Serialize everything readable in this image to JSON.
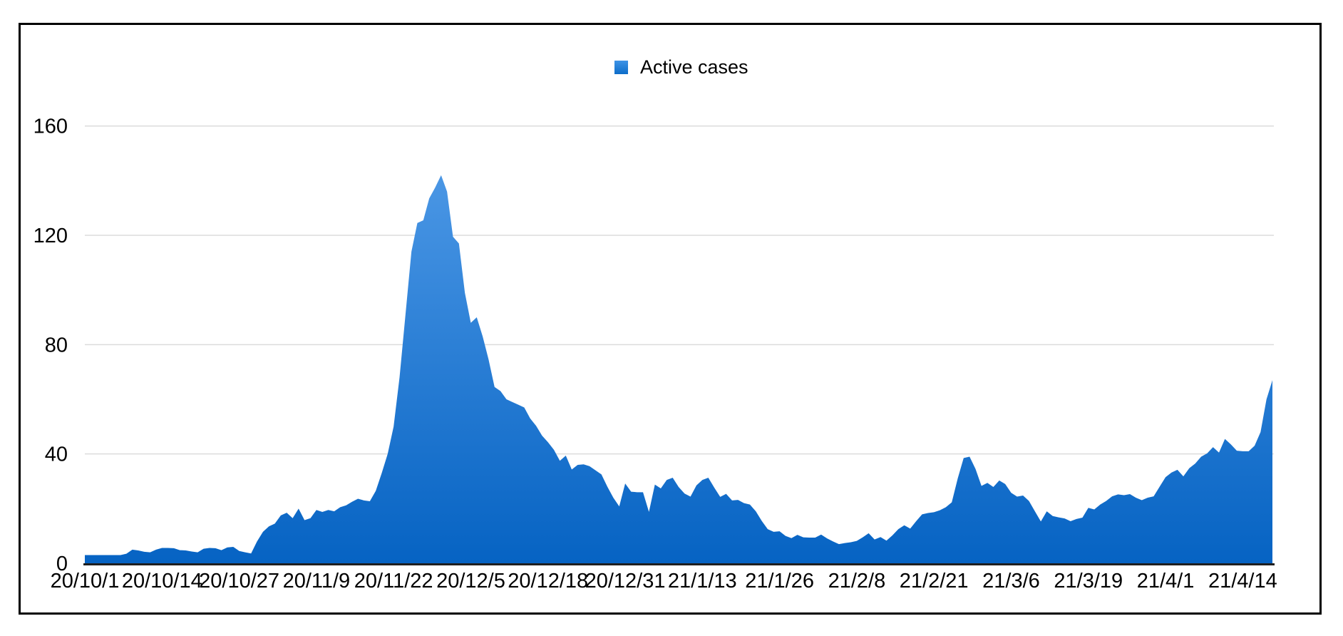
{
  "legend": {
    "label": "Active cases"
  },
  "chart_data": {
    "type": "area",
    "title": "",
    "series_name": "Active cases",
    "x_start_date": "20/10/1",
    "x_end_date": "21/4/19",
    "x_interval": "daily",
    "x_tick_labels": [
      "20/10/1",
      "20/10/14",
      "20/10/27",
      "20/11/9",
      "20/11/22",
      "20/12/5",
      "20/12/18",
      "20/12/31",
      "21/1/13",
      "21/1/26",
      "21/2/8",
      "21/2/21",
      "21/3/6",
      "21/3/19",
      "21/4/1",
      "21/4/14"
    ],
    "x_tick_day_indices": [
      0,
      13,
      26,
      39,
      52,
      65,
      78,
      91,
      104,
      117,
      130,
      143,
      156,
      169,
      182,
      195
    ],
    "y_ticks": [
      0,
      40,
      80,
      120,
      160
    ],
    "ylim": [
      0,
      160
    ],
    "grid": "horizontal-only",
    "legend_position": "top-center",
    "peak_value": 142,
    "last_value": 67,
    "values": [
      3,
      3,
      3,
      3,
      3,
      3,
      3,
      3.5,
      5,
      4.7,
      4.2,
      4,
      5,
      5.6,
      5.6,
      5.5,
      4.8,
      4.7,
      4.3,
      4,
      5.3,
      5.6,
      5.5,
      4.8,
      5.8,
      6,
      4.5,
      4,
      3.6,
      8,
      11.5,
      13.5,
      14.5,
      17.5,
      18.5,
      16.5,
      20,
      15.8,
      16.5,
      19.5,
      18.8,
      19.5,
      19,
      20.5,
      21.2,
      22.5,
      23.6,
      23,
      22.7,
      26.5,
      33,
      40,
      50,
      68,
      91,
      114,
      124.5,
      125.5,
      133.5,
      137.5,
      142,
      136,
      119.5,
      117,
      99,
      88,
      90,
      83,
      74.5,
      64.5,
      63,
      60,
      59,
      58,
      57,
      53,
      50.3,
      46.7,
      44.3,
      41.5,
      37.5,
      39.4,
      34.3,
      36,
      36.2,
      35.5,
      34,
      32.5,
      28,
      24,
      20.8,
      29.2,
      26.2,
      26,
      26,
      18.8,
      28.8,
      27.4,
      30.5,
      31.3,
      27.9,
      25.5,
      24.4,
      28.5,
      30.5,
      31.3,
      27.7,
      24.3,
      25.4,
      23,
      23.2,
      22,
      21.5,
      19,
      15.5,
      12.5,
      11.5,
      11.7,
      10,
      9.2,
      10.4,
      9.5,
      9.4,
      9.4,
      10.5,
      9.1,
      8,
      7,
      7.4,
      7.7,
      8.2,
      9.5,
      11,
      8.7,
      9.6,
      8.3,
      10.2,
      12.5,
      13.9,
      12.7,
      15.4,
      17.9,
      18.4,
      18.7,
      19.4,
      20.5,
      22.3,
      31,
      38.5,
      39,
      34.5,
      28.3,
      29.4,
      27.9,
      30.3,
      29,
      25.8,
      24.4,
      24.8,
      22.8,
      19,
      15.3,
      19,
      17.3,
      16.8,
      16.4,
      15.4,
      16.2,
      16.7,
      20.3,
      19.7,
      21.5,
      22.8,
      24.5,
      25.2,
      24.9,
      25.3,
      24,
      23.1,
      24,
      24.5,
      28,
      31.5,
      33.2,
      34.2,
      31.8,
      34.8,
      36.5,
      39,
      40.2,
      42.5,
      40.5,
      45.5,
      43.5,
      41.2,
      41,
      41,
      43,
      48,
      60,
      67
    ],
    "colors": {
      "area_gradient_top": "#539de9",
      "area_gradient_bottom": "#0663c3",
      "legend_swatch_top": "#3e93e6",
      "legend_swatch_bottom": "#0d6dc9",
      "gridline": "#dcdcdc",
      "axis_line": "#1f1f1f",
      "text": "#000000"
    }
  }
}
